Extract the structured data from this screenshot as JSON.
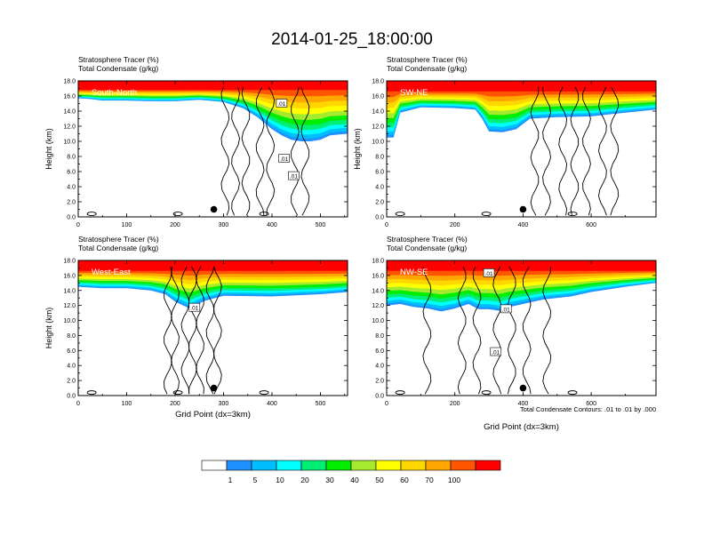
{
  "figure": {
    "title": "2014-01-25_18:00:00",
    "contour_note": "Total Condensate Contours: .01 to .01 by .000"
  },
  "colorbar": {
    "colors": [
      "#ffffff",
      "#1e90ff",
      "#00bfff",
      "#00ffff",
      "#00ee76",
      "#00ee00",
      "#a6ea2e",
      "#ffff00",
      "#ffd700",
      "#ffa500",
      "#ff5500",
      "#ff0000"
    ],
    "labels": [
      "1",
      "5",
      "10",
      "20",
      "30",
      "40",
      "50",
      "60",
      "70",
      "100"
    ]
  },
  "chart_data": [
    {
      "type": "heatmap",
      "panel": "top-left",
      "label": "South-North",
      "subtitle_lines": [
        "Stratosphere Tracer   (%)",
        "Total Condensate   (g/kg)"
      ],
      "ylabel": "Height (km)",
      "xlabel": "",
      "xlim": [
        0,
        556
      ],
      "ylim": [
        0,
        18
      ],
      "xticks": [
        "0",
        "100",
        "200",
        "300",
        "400",
        "500"
      ],
      "yticks": [
        "0.0",
        "2.0",
        "4.0",
        "6.0",
        "8.0",
        "10.0",
        "12.0",
        "14.0",
        "16.0",
        "18.0"
      ],
      "tracer_fill_base_km": [
        [
          0,
          15.7
        ],
        [
          25,
          15.6
        ],
        [
          50,
          15.4
        ],
        [
          100,
          15.4
        ],
        [
          150,
          15.3
        ],
        [
          200,
          15.3
        ],
        [
          250,
          15.5
        ],
        [
          300,
          15.2
        ],
        [
          340,
          14.4
        ],
        [
          370,
          13.2
        ],
        [
          400,
          11.6
        ],
        [
          420,
          10.8
        ],
        [
          440,
          10.2
        ],
        [
          460,
          10.0
        ],
        [
          480,
          10.0
        ],
        [
          500,
          10.2
        ],
        [
          520,
          10.8
        ],
        [
          556,
          11.0
        ]
      ],
      "tropopause_km": 16.8,
      "contour_labels": [
        {
          "text": ".01",
          "x": 420,
          "y": 15.0
        },
        {
          "text": ".01",
          "x": 425,
          "y": 7.7
        },
        {
          "text": ".01",
          "x": 445,
          "y": 5.4
        }
      ],
      "marker": {
        "x": 280,
        "y": 1.0
      }
    },
    {
      "type": "heatmap",
      "panel": "top-right",
      "label": "SW-NE",
      "subtitle_lines": [
        "Stratosphere Tracer   (%)",
        "Total Condensate   (g/kg)"
      ],
      "ylabel": "Height (km)",
      "xlabel": "",
      "xlim": [
        0,
        790
      ],
      "ylim": [
        0,
        18
      ],
      "xticks": [
        "0",
        "200",
        "400",
        "600"
      ],
      "yticks": [
        "0.0",
        "2.0",
        "4.0",
        "6.0",
        "8.0",
        "10.0",
        "12.0",
        "14.0",
        "16.0",
        "18.0"
      ],
      "tracer_fill_base_km": [
        [
          0,
          10.5
        ],
        [
          20,
          10.5
        ],
        [
          40,
          13.8
        ],
        [
          100,
          14.5
        ],
        [
          200,
          14.4
        ],
        [
          260,
          14.2
        ],
        [
          280,
          13.0
        ],
        [
          300,
          11.3
        ],
        [
          340,
          11.2
        ],
        [
          380,
          11.6
        ],
        [
          420,
          13.0
        ],
        [
          500,
          13.2
        ],
        [
          600,
          13.3
        ],
        [
          700,
          13.8
        ],
        [
          790,
          14.2
        ]
      ],
      "tropopause_km": 16.6,
      "contour_labels": [],
      "marker": {
        "x": 400,
        "y": 1.0
      }
    },
    {
      "type": "heatmap",
      "panel": "bottom-left",
      "label": "West-East",
      "subtitle_lines": [
        "Stratosphere Tracer   (%)",
        "Total Condensate   (g/kg)"
      ],
      "ylabel": "Height (km)",
      "xlabel": "Grid Point (dx=3km)",
      "xlim": [
        0,
        556
      ],
      "ylim": [
        0,
        18
      ],
      "xticks": [
        "0",
        "100",
        "200",
        "300",
        "400",
        "500"
      ],
      "yticks": [
        "0.0",
        "2.0",
        "4.0",
        "6.0",
        "8.0",
        "10.0",
        "12.0",
        "14.0",
        "16.0",
        "18.0"
      ],
      "tracer_fill_base_km": [
        [
          0,
          14.5
        ],
        [
          50,
          14.3
        ],
        [
          100,
          14.3
        ],
        [
          150,
          14.0
        ],
        [
          180,
          13.5
        ],
        [
          200,
          12.5
        ],
        [
          230,
          11.6
        ],
        [
          260,
          12.6
        ],
        [
          300,
          13.3
        ],
        [
          400,
          13.2
        ],
        [
          500,
          13.5
        ],
        [
          556,
          13.8
        ]
      ],
      "tropopause_km": 16.6,
      "contour_labels": [
        {
          "text": ".01",
          "x": 240,
          "y": 11.7
        }
      ],
      "marker": {
        "x": 280,
        "y": 1.0
      }
    },
    {
      "type": "heatmap",
      "panel": "bottom-right",
      "label": "NW-SE",
      "subtitle_lines": [
        "Stratosphere Tracer   (%)",
        "Total Condensate   (g/kg)"
      ],
      "ylabel": "",
      "xlabel": "Grid Point (dx=3km)",
      "xlim": [
        0,
        790
      ],
      "ylim": [
        0,
        18
      ],
      "xticks": [
        "0",
        "200",
        "400",
        "600"
      ],
      "yticks": [
        "0.0",
        "2.0",
        "4.0",
        "6.0",
        "8.0",
        "10.0",
        "12.0",
        "14.0",
        "16.0",
        "18.0"
      ],
      "tracer_fill_base_km": [
        [
          0,
          12.0
        ],
        [
          40,
          12.2
        ],
        [
          80,
          11.8
        ],
        [
          120,
          11.6
        ],
        [
          160,
          11.2
        ],
        [
          200,
          11.6
        ],
        [
          240,
          12.2
        ],
        [
          270,
          11.5
        ],
        [
          300,
          11.5
        ],
        [
          330,
          11.3
        ],
        [
          360,
          11.8
        ],
        [
          400,
          12.2
        ],
        [
          460,
          12.8
        ],
        [
          540,
          13.2
        ],
        [
          600,
          13.8
        ],
        [
          700,
          14.5
        ],
        [
          790,
          15.0
        ]
      ],
      "tropopause_km": 16.6,
      "contour_labels": [
        {
          "text": ".01",
          "x": 300,
          "y": 16.3
        },
        {
          "text": ".01",
          "x": 350,
          "y": 11.5
        },
        {
          "text": ".01",
          "x": 320,
          "y": 5.8
        }
      ],
      "marker": {
        "x": 400,
        "y": 1.0
      }
    }
  ]
}
